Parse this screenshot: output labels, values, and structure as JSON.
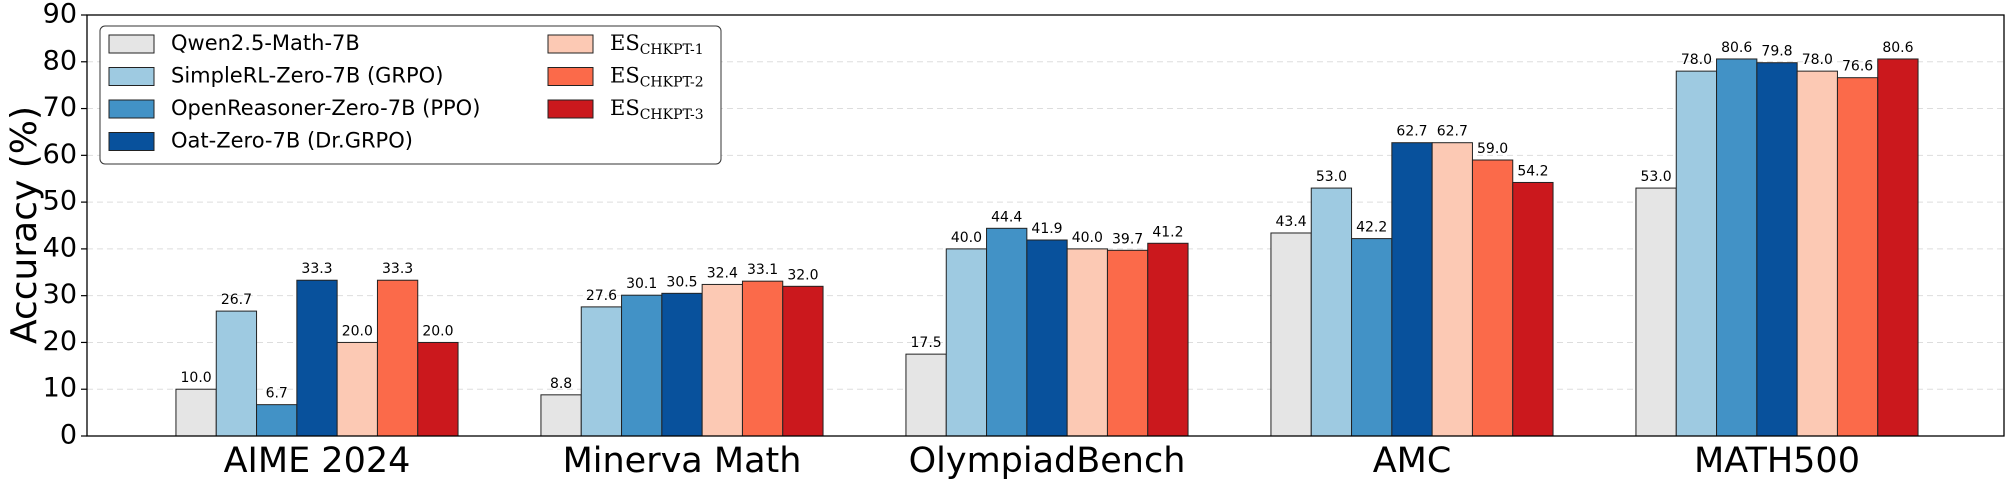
{
  "chart_data": {
    "type": "bar",
    "ylabel": "Accuracy (%)",
    "categories": [
      "AIME 2024",
      "Minerva Math",
      "OlympiadBench",
      "AMC",
      "MATH500"
    ],
    "ylim": [
      0,
      90
    ],
    "yticks": [
      0,
      10,
      20,
      30,
      40,
      50,
      60,
      70,
      80,
      90
    ],
    "grid": true,
    "legend": "upper left",
    "series": [
      {
        "name": "Qwen2.5-Math-7B",
        "color": "#e5e5e5",
        "values": [
          10.0,
          8.8,
          17.5,
          43.4,
          53.0
        ],
        "value_labels": [
          "10.0",
          "8.8",
          "17.5",
          "43.4",
          "53.0"
        ]
      },
      {
        "name": "SimpleRL-Zero-7B (GRPO)",
        "color": "#9ecae1",
        "values": [
          26.7,
          27.6,
          40.0,
          53.0,
          78.0
        ],
        "value_labels": [
          "26.7",
          "27.6",
          "40.0",
          "53.0",
          "78.0"
        ]
      },
      {
        "name": "OpenReasoner-Zero-7B (PPO)",
        "color": "#4292c6",
        "values": [
          6.7,
          30.1,
          44.4,
          42.2,
          80.6
        ],
        "value_labels": [
          "6.7",
          "30.1",
          "44.4",
          "42.2",
          "80.6"
        ]
      },
      {
        "name": "Oat-Zero-7B (Dr.GRPO)",
        "color": "#08519c",
        "values": [
          33.3,
          30.5,
          41.9,
          62.7,
          79.8
        ],
        "value_labels": [
          "33.3",
          "30.5",
          "41.9",
          "62.7",
          "79.8"
        ]
      },
      {
        "name": "ES",
        "name_sub": "CHKPT-1",
        "color": "#fcc9b4",
        "values": [
          20.0,
          32.4,
          40.0,
          62.7,
          78.0
        ],
        "value_labels": [
          "20.0",
          "32.4",
          "40.0",
          "62.7",
          "78.0"
        ]
      },
      {
        "name": "ES",
        "name_sub": "CHKPT-2",
        "color": "#fb6a4a",
        "values": [
          33.3,
          33.1,
          39.7,
          59.0,
          76.6
        ],
        "value_labels": [
          "33.3",
          "33.1",
          "39.7",
          "59.0",
          "76.6"
        ]
      },
      {
        "name": "ES",
        "name_sub": "CHKPT-3",
        "color": "#cb181d",
        "values": [
          20.0,
          32.0,
          41.2,
          54.2,
          80.6
        ],
        "value_labels": [
          "20.0",
          "32.0",
          "41.2",
          "54.2",
          "80.6"
        ]
      }
    ]
  }
}
